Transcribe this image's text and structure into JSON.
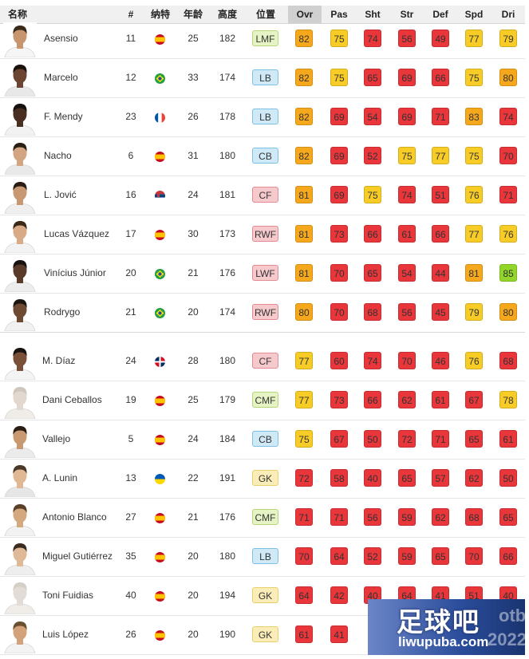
{
  "headers": {
    "name": "名称",
    "number": "#",
    "nationality": "纳特",
    "age": "年龄",
    "height": "高度",
    "position": "位置",
    "ovr": "Ovr",
    "pas": "Pas",
    "sht": "Sht",
    "str": "Str",
    "def": "Def",
    "spd": "Spd",
    "dri": "Dri"
  },
  "sorted_column": "Ovr",
  "colors": {
    "stat_red": "#e8363a",
    "stat_orange": "#f6a81c",
    "stat_yellow": "#f8cc26",
    "stat_green": "#92d62a",
    "pos_midfield": "#e6f3c4",
    "pos_defence": "#cfe9f7",
    "pos_attack": "#f6c9cc",
    "pos_goalkeeper": "#faedb7"
  },
  "players": [
    {
      "name": "Asensio",
      "number": "11",
      "flag": "spain-flag-icon",
      "age": "25",
      "height": "182",
      "position": "LMF",
      "pos_group": "mid",
      "ovr": "82",
      "pas": "75",
      "sht": "74",
      "str": "56",
      "def": "49",
      "spd": "77",
      "dri": "79"
    },
    {
      "name": "Marcelo",
      "number": "12",
      "flag": "brazil-flag-icon",
      "age": "33",
      "height": "174",
      "position": "LB",
      "pos_group": "def",
      "ovr": "82",
      "pas": "75",
      "sht": "65",
      "str": "69",
      "def": "66",
      "spd": "75",
      "dri": "80"
    },
    {
      "name": "F. Mendy",
      "number": "23",
      "flag": "france-flag-icon",
      "age": "26",
      "height": "178",
      "position": "LB",
      "pos_group": "def",
      "ovr": "82",
      "pas": "69",
      "sht": "54",
      "str": "69",
      "def": "71",
      "spd": "83",
      "dri": "74"
    },
    {
      "name": "Nacho",
      "number": "6",
      "flag": "spain-flag-icon",
      "age": "31",
      "height": "180",
      "position": "CB",
      "pos_group": "def",
      "ovr": "82",
      "pas": "69",
      "sht": "52",
      "str": "75",
      "def": "77",
      "spd": "75",
      "dri": "70"
    },
    {
      "name": "L. Jović",
      "number": "16",
      "flag": "serbia-flag-icon",
      "age": "24",
      "height": "181",
      "position": "CF",
      "pos_group": "att",
      "ovr": "81",
      "pas": "69",
      "sht": "75",
      "str": "74",
      "def": "51",
      "spd": "76",
      "dri": "71"
    },
    {
      "name": "Lucas Vázquez",
      "number": "17",
      "flag": "spain-flag-icon",
      "age": "30",
      "height": "173",
      "position": "RWF",
      "pos_group": "att",
      "ovr": "81",
      "pas": "73",
      "sht": "66",
      "str": "61",
      "def": "66",
      "spd": "77",
      "dri": "76"
    },
    {
      "name": "Vinícius Júnior",
      "number": "20",
      "flag": "brazil-flag-icon",
      "age": "21",
      "height": "176",
      "position": "LWF",
      "pos_group": "att",
      "ovr": "81",
      "pas": "70",
      "sht": "65",
      "str": "54",
      "def": "44",
      "spd": "81",
      "dri": "85"
    },
    {
      "name": "Rodrygo",
      "number": "21",
      "flag": "brazil-flag-icon",
      "age": "20",
      "height": "174",
      "position": "RWF",
      "pos_group": "att",
      "ovr": "80",
      "pas": "70",
      "sht": "68",
      "str": "56",
      "def": "45",
      "spd": "79",
      "dri": "80"
    },
    {
      "name": "M. Díaz",
      "number": "24",
      "flag": "dominican-flag-icon",
      "age": "28",
      "height": "180",
      "position": "CF",
      "pos_group": "att",
      "ovr": "77",
      "pas": "60",
      "sht": "74",
      "str": "70",
      "def": "46",
      "spd": "76",
      "dri": "68"
    },
    {
      "name": "Dani Ceballos",
      "number": "19",
      "flag": "spain-flag-icon",
      "age": "25",
      "height": "179",
      "position": "CMF",
      "pos_group": "mid",
      "ovr": "77",
      "pas": "73",
      "sht": "66",
      "str": "62",
      "def": "61",
      "spd": "67",
      "dri": "78"
    },
    {
      "name": "Vallejo",
      "number": "5",
      "flag": "spain-flag-icon",
      "age": "24",
      "height": "184",
      "position": "CB",
      "pos_group": "def",
      "ovr": "75",
      "pas": "67",
      "sht": "50",
      "str": "72",
      "def": "71",
      "spd": "65",
      "dri": "61"
    },
    {
      "name": "A. Lunin",
      "number": "13",
      "flag": "ukraine-flag-icon",
      "age": "22",
      "height": "191",
      "position": "GK",
      "pos_group": "gk",
      "ovr": "72",
      "pas": "58",
      "sht": "40",
      "str": "65",
      "def": "57",
      "spd": "62",
      "dri": "50"
    },
    {
      "name": "Antonio Blanco",
      "number": "27",
      "flag": "spain-flag-icon",
      "age": "21",
      "height": "176",
      "position": "CMF",
      "pos_group": "mid",
      "ovr": "71",
      "pas": "71",
      "sht": "56",
      "str": "59",
      "def": "62",
      "spd": "68",
      "dri": "65"
    },
    {
      "name": "Miguel Gutiérrez",
      "number": "35",
      "flag": "spain-flag-icon",
      "age": "20",
      "height": "180",
      "position": "LB",
      "pos_group": "def",
      "ovr": "70",
      "pas": "64",
      "sht": "52",
      "str": "59",
      "def": "65",
      "spd": "70",
      "dri": "66"
    },
    {
      "name": "Toni Fuidias",
      "number": "40",
      "flag": "spain-flag-icon",
      "age": "20",
      "height": "194",
      "position": "GK",
      "pos_group": "gk",
      "ovr": "64",
      "pas": "42",
      "sht": "40",
      "str": "64",
      "def": "41",
      "spd": "51",
      "dri": "40"
    },
    {
      "name": "Luis López",
      "number": "26",
      "flag": "spain-flag-icon",
      "age": "20",
      "height": "190",
      "position": "GK",
      "pos_group": "gk",
      "ovr": "61",
      "pas": "41",
      "sht": "",
      "str": "",
      "def": "",
      "spd": "",
      "dri": ""
    }
  ],
  "watermark": {
    "site_name": "足球吧",
    "url": "liwupuba.com",
    "brand_text": "otba",
    "year_text": "2022"
  }
}
